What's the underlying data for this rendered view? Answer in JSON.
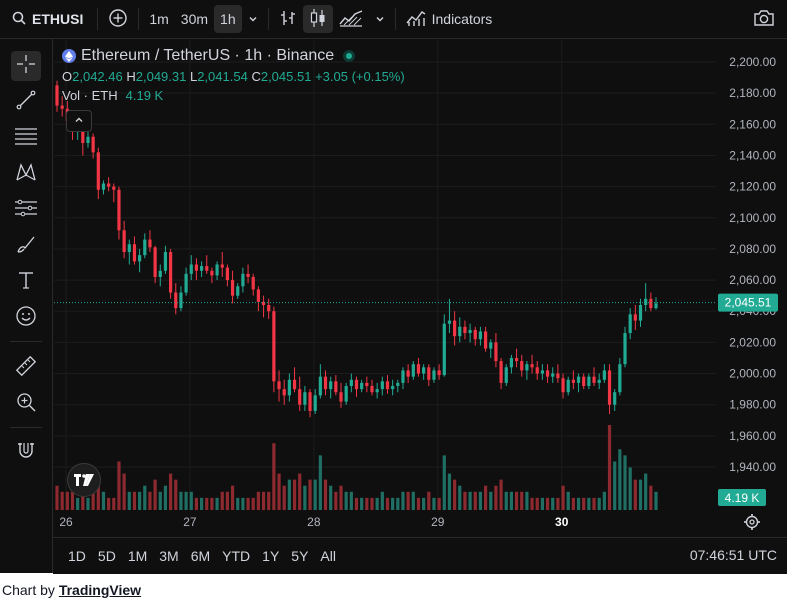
{
  "toolbar": {
    "symbol": "ETHUSI",
    "intervals": [
      "1m",
      "30m",
      "1h"
    ],
    "active_interval": "1h",
    "indicators_label": "Indicators"
  },
  "legend": {
    "title": "Ethereum / TetherUS · 1h · Binance",
    "o_label": "O",
    "o_value": "2,042.46",
    "h_label": "H",
    "h_value": "2,049.31",
    "l_label": "L",
    "l_value": "2,041.54",
    "c_label": "C",
    "c_value": "2,045.51",
    "change": "+3.05 (+0.15%)",
    "vol_label": "Vol · ETH",
    "vol_value": "4.19 K"
  },
  "bottom": {
    "ranges": [
      "1D",
      "5D",
      "1M",
      "3M",
      "6M",
      "YTD",
      "1Y",
      "5Y",
      "All"
    ],
    "clock": "07:46:51 UTC"
  },
  "credit": {
    "prefix": "Chart by ",
    "link": "TradingView"
  },
  "colors": {
    "up": "#22ab94",
    "down": "#f23645",
    "vol_up": "#1f6f64",
    "vol_down": "#8c2a2f",
    "background": "#0f0f0f",
    "grid": "#1c1c1c"
  },
  "icons": [
    "search-icon",
    "add-symbol-icon",
    "chevron-down-icon",
    "bar-chart-icon",
    "candles-icon",
    "area-chart-icon",
    "indicators-icon",
    "camera-icon",
    "crosshair-icon",
    "trend-line-icon",
    "fib-icon",
    "pattern-icon",
    "forecast-icon",
    "brush-icon",
    "text-icon",
    "emoji-icon",
    "ruler-icon",
    "zoom-in-icon",
    "magnet-icon",
    "settings-icon",
    "tradingview-logo"
  ],
  "chart_data": {
    "type": "candlestick",
    "title": "Ethereum / TetherUS · 1h · Binance",
    "x_ticks": [
      "26",
      "27",
      "28",
      "29",
      "30"
    ],
    "y_ticks": [
      "2,200.00",
      "2,180.00",
      "2,160.00",
      "2,140.00",
      "2,120.00",
      "2,100.00",
      "2,080.00",
      "2,060.00",
      "2,040.00",
      "2,020.00",
      "2,000.00",
      "1,980.00",
      "1,960.00",
      "1,940.00"
    ],
    "ylim": [
      1930,
      2210
    ],
    "last_price": "2,045.51",
    "last_volume": "4.19 K",
    "volume_unit": "ETH",
    "grid": true,
    "candles": [
      [
        2185,
        2188,
        2168,
        2172,
        4
      ],
      [
        2172,
        2178,
        2165,
        2170,
        3
      ],
      [
        2170,
        2175,
        2158,
        2162,
        3
      ],
      [
        2162,
        2168,
        2150,
        2156,
        3
      ],
      [
        2156,
        2162,
        2150,
        2158,
        2
      ],
      [
        2158,
        2160,
        2140,
        2148,
        3
      ],
      [
        2148,
        2155,
        2145,
        2152,
        2
      ],
      [
        2152,
        2154,
        2138,
        2142,
        3
      ],
      [
        2142,
        2145,
        2112,
        2118,
        6
      ],
      [
        2118,
        2124,
        2115,
        2122,
        3
      ],
      [
        2122,
        2126,
        2117,
        2120,
        2
      ],
      [
        2120,
        2122,
        2110,
        2118,
        2
      ],
      [
        2118,
        2120,
        2086,
        2092,
        8
      ],
      [
        2092,
        2098,
        2074,
        2078,
        6
      ],
      [
        2078,
        2086,
        2070,
        2083,
        3
      ],
      [
        2083,
        2088,
        2070,
        2072,
        3
      ],
      [
        2072,
        2080,
        2065,
        2076,
        3
      ],
      [
        2076,
        2090,
        2074,
        2086,
        4
      ],
      [
        2086,
        2092,
        2078,
        2081,
        3
      ],
      [
        2081,
        2082,
        2058,
        2062,
        5
      ],
      [
        2062,
        2070,
        2056,
        2066,
        3
      ],
      [
        2066,
        2082,
        2064,
        2078,
        4
      ],
      [
        2078,
        2080,
        2048,
        2052,
        6
      ],
      [
        2052,
        2058,
        2038,
        2042,
        5
      ],
      [
        2042,
        2056,
        2040,
        2052,
        3
      ],
      [
        2052,
        2068,
        2050,
        2064,
        3
      ],
      [
        2064,
        2076,
        2060,
        2070,
        3
      ],
      [
        2070,
        2074,
        2060,
        2066,
        2
      ],
      [
        2066,
        2072,
        2062,
        2069,
        2
      ],
      [
        2069,
        2076,
        2064,
        2066,
        2
      ],
      [
        2066,
        2068,
        2058,
        2063,
        2
      ],
      [
        2063,
        2072,
        2060,
        2070,
        2
      ],
      [
        2070,
        2078,
        2062,
        2068,
        3
      ],
      [
        2068,
        2070,
        2056,
        2060,
        3
      ],
      [
        2060,
        2066,
        2045,
        2050,
        4
      ],
      [
        2050,
        2058,
        2048,
        2056,
        2
      ],
      [
        2056,
        2068,
        2052,
        2064,
        2
      ],
      [
        2064,
        2070,
        2058,
        2062,
        2
      ],
      [
        2062,
        2064,
        2050,
        2054,
        2
      ],
      [
        2054,
        2056,
        2040,
        2046,
        3
      ],
      [
        2046,
        2050,
        2036,
        2044,
        3
      ],
      [
        2044,
        2048,
        2035,
        2040,
        3
      ],
      [
        2040,
        2043,
        1988,
        1995,
        11
      ],
      [
        1995,
        2002,
        1982,
        1990,
        6
      ],
      [
        1990,
        1996,
        1980,
        1986,
        4
      ],
      [
        1986,
        2000,
        1982,
        1996,
        5
      ],
      [
        1996,
        2004,
        1988,
        1990,
        5
      ],
      [
        1990,
        1998,
        1976,
        1980,
        6
      ],
      [
        1980,
        1992,
        1976,
        1988,
        4
      ],
      [
        1988,
        1990,
        1972,
        1976,
        5
      ],
      [
        1976,
        1990,
        1974,
        1986,
        5
      ],
      [
        1986,
        2006,
        1984,
        1998,
        9
      ],
      [
        1998,
        2002,
        1986,
        1990,
        5
      ],
      [
        1990,
        1998,
        1984,
        1995,
        4
      ],
      [
        1995,
        1999,
        1986,
        1988,
        3
      ],
      [
        1988,
        1994,
        1978,
        1982,
        4
      ],
      [
        1982,
        1994,
        1980,
        1992,
        3
      ],
      [
        1992,
        2000,
        1988,
        1996,
        3
      ],
      [
        1996,
        1998,
        1985,
        1990,
        2
      ],
      [
        1990,
        1996,
        1988,
        1994,
        2
      ],
      [
        1994,
        1998,
        1988,
        1992,
        2
      ],
      [
        1992,
        1996,
        1986,
        1988,
        2
      ],
      [
        1988,
        1994,
        1984,
        1990,
        2
      ],
      [
        1990,
        1998,
        1986,
        1995,
        3
      ],
      [
        1995,
        1999,
        1987,
        1990,
        2
      ],
      [
        1990,
        1996,
        1986,
        1992,
        2
      ],
      [
        1992,
        1996,
        1988,
        1994,
        2
      ],
      [
        1994,
        2004,
        1990,
        2002,
        3
      ],
      [
        2002,
        2006,
        1994,
        1998,
        3
      ],
      [
        1998,
        2008,
        1996,
        2006,
        3
      ],
      [
        2006,
        2010,
        1998,
        2000,
        2
      ],
      [
        2000,
        2006,
        1996,
        2004,
        2
      ],
      [
        2004,
        2006,
        1992,
        1996,
        3
      ],
      [
        1996,
        2004,
        1994,
        2002,
        2
      ],
      [
        2002,
        2006,
        1996,
        1999,
        2
      ],
      [
        1999,
        2038,
        1998,
        2032,
        9
      ],
      [
        2032,
        2048,
        2026,
        2034,
        6
      ],
      [
        2034,
        2040,
        2018,
        2024,
        5
      ],
      [
        2024,
        2036,
        2020,
        2030,
        4
      ],
      [
        2030,
        2034,
        2022,
        2026,
        3
      ],
      [
        2026,
        2032,
        2020,
        2028,
        3
      ],
      [
        2028,
        2030,
        2018,
        2022,
        3
      ],
      [
        2022,
        2030,
        2018,
        2027,
        3
      ],
      [
        2027,
        2030,
        2014,
        2016,
        4
      ],
      [
        2016,
        2022,
        2010,
        2020,
        3
      ],
      [
        2020,
        2026,
        2004,
        2008,
        4
      ],
      [
        2008,
        2010,
        1990,
        1994,
        5
      ],
      [
        1994,
        2006,
        1992,
        2004,
        3
      ],
      [
        2004,
        2012,
        2000,
        2010,
        3
      ],
      [
        2010,
        2016,
        2004,
        2008,
        3
      ],
      [
        2008,
        2012,
        1998,
        2002,
        3
      ],
      [
        2002,
        2008,
        1996,
        2006,
        3
      ],
      [
        2006,
        2012,
        2000,
        2004,
        2
      ],
      [
        2004,
        2008,
        1996,
        2000,
        2
      ],
      [
        2000,
        2006,
        1996,
        2002,
        2
      ],
      [
        2002,
        2006,
        1994,
        1998,
        2
      ],
      [
        1998,
        2004,
        1994,
        2000,
        2
      ],
      [
        2000,
        2006,
        1994,
        1997,
        2
      ],
      [
        1997,
        2000,
        1984,
        1988,
        4
      ],
      [
        1988,
        1998,
        1986,
        1996,
        3
      ],
      [
        1996,
        2002,
        1990,
        1994,
        2
      ],
      [
        1994,
        2000,
        1988,
        1998,
        2
      ],
      [
        1998,
        2000,
        1990,
        1992,
        2
      ],
      [
        1992,
        2000,
        1990,
        1998,
        2
      ],
      [
        1998,
        2004,
        1992,
        1994,
        2
      ],
      [
        1994,
        2000,
        1990,
        1996,
        2
      ],
      [
        1996,
        2006,
        1994,
        2002,
        3
      ],
      [
        2002,
        2006,
        1974,
        1980,
        14
      ],
      [
        1980,
        1990,
        1976,
        1988,
        8
      ],
      [
        1988,
        2010,
        1986,
        2006,
        10
      ],
      [
        2006,
        2030,
        2004,
        2026,
        9
      ],
      [
        2026,
        2042,
        2022,
        2038,
        7
      ],
      [
        2038,
        2044,
        2028,
        2034,
        5
      ],
      [
        2034,
        2048,
        2030,
        2044,
        5
      ],
      [
        2044,
        2058,
        2040,
        2048,
        6
      ],
      [
        2048,
        2052,
        2040,
        2042,
        4
      ],
      [
        2042,
        2049,
        2041,
        2045,
        3
      ]
    ]
  }
}
